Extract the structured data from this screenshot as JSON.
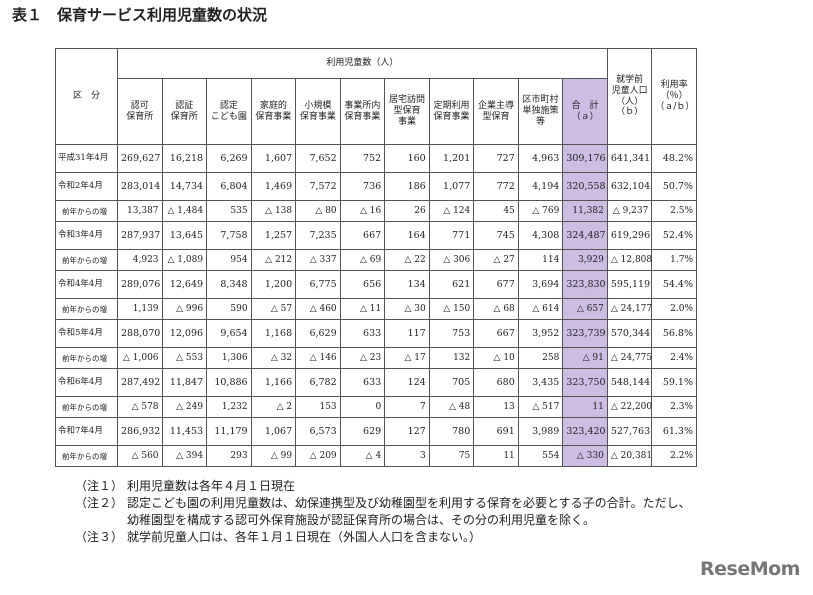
{
  "title": "表１　保育サービス利用児童数の状況",
  "table": {
    "row_header": "区　分",
    "group_header": "利用児童数（人）",
    "columns": [
      "認可\n保育所",
      "認証\n保育所",
      "認定\nこども園",
      "家庭的\n保育事業",
      "小規模\n保育事業",
      "事業所内\n保育事業",
      "居宅訪問\n型保育\n事業",
      "定期利用\n保育事業",
      "企業主導\n型保育",
      "区市町村\n単独施策\n等",
      "合　計\n（ａ）",
      "就学前\n児童人口\n（人）\n（ｂ）",
      "利用率\n（％）\n（ａ/ｂ）"
    ],
    "rows": [
      [
        "平成31年4月",
        "269,627",
        "16,218",
        "6,269",
        "1,607",
        "7,652",
        "752",
        "160",
        "1,201",
        "727",
        "4,963",
        "309,176",
        "641,341",
        "48.2%"
      ],
      [
        "令和2年4月",
        "283,014",
        "14,734",
        "6,804",
        "1,469",
        "7,572",
        "736",
        "186",
        "1,077",
        "772",
        "4,194",
        "320,558",
        "632,104",
        "50.7%"
      ],
      [
        "前年からの増",
        "13,387",
        "△ 1,484",
        "535",
        "△ 138",
        "△ 80",
        "△ 16",
        "26",
        "△ 124",
        "45",
        "△ 769",
        "11,382",
        "△ 9,237",
        "2.5%"
      ],
      [
        "令和3年4月",
        "287,937",
        "13,645",
        "7,758",
        "1,257",
        "7,235",
        "667",
        "164",
        "771",
        "745",
        "4,308",
        "324,487",
        "619,296",
        "52.4%"
      ],
      [
        "前年からの増",
        "4,923",
        "△ 1,089",
        "954",
        "△ 212",
        "△ 337",
        "△ 69",
        "△ 22",
        "△ 306",
        "△ 27",
        "114",
        "3,929",
        "△ 12,808",
        "1.7%"
      ],
      [
        "令和4年4月",
        "289,076",
        "12,649",
        "8,348",
        "1,200",
        "6,775",
        "656",
        "134",
        "621",
        "677",
        "3,694",
        "323,830",
        "595,119",
        "54.4%"
      ],
      [
        "前年からの増",
        "1,139",
        "△ 996",
        "590",
        "△ 57",
        "△ 460",
        "△ 11",
        "△ 30",
        "△ 150",
        "△ 68",
        "△ 614",
        "△ 657",
        "△ 24,177",
        "2.0%"
      ],
      [
        "令和5年4月",
        "288,070",
        "12,096",
        "9,654",
        "1,168",
        "6,629",
        "633",
        "117",
        "753",
        "667",
        "3,952",
        "323,739",
        "570,344",
        "56.8%"
      ],
      [
        "前年からの増",
        "△ 1,006",
        "△ 553",
        "1,306",
        "△ 32",
        "△ 146",
        "△ 23",
        "△ 17",
        "132",
        "△ 10",
        "258",
        "△ 91",
        "△ 24,775",
        "2.4%"
      ],
      [
        "令和6年4月",
        "287,492",
        "11,847",
        "10,886",
        "1,166",
        "6,782",
        "633",
        "124",
        "705",
        "680",
        "3,435",
        "323,750",
        "548,144",
        "59.1%"
      ],
      [
        "前年からの増",
        "△ 578",
        "△ 249",
        "1,232",
        "△ 2",
        "153",
        "0",
        "7",
        "△ 48",
        "13",
        "△ 517",
        "11",
        "△ 22,200",
        "2.3%"
      ],
      [
        "令和7年4月",
        "286,932",
        "11,453",
        "11,179",
        "1,067",
        "6,573",
        "629",
        "127",
        "780",
        "691",
        "3,989",
        "323,420",
        "527,763",
        "61.3%"
      ],
      [
        "前年からの増",
        "△ 560",
        "△ 394",
        "293",
        "△ 99",
        "△ 209",
        "△ 4",
        "3",
        "75",
        "11",
        "554",
        "△ 330",
        "△ 20,381",
        "2.2%"
      ]
    ]
  },
  "notes": [
    {
      "label": "（注１）",
      "text": "利用児童数は各年４月１日現在"
    },
    {
      "label": "（注２）",
      "text": "認定こども園の利用児童数は、幼保連携型及び幼稚園型を利用する保育を必要とする子の合計。ただし、幼稚園型を構成する認可外保育施設が認証保育所の場合は、その分の利用児童を除く。"
    },
    {
      "label": "（注３）",
      "text": "就学前児童人口は、各年１月１日現在（外国人人口を含まない。）"
    }
  ],
  "logo": "ReseMom"
}
